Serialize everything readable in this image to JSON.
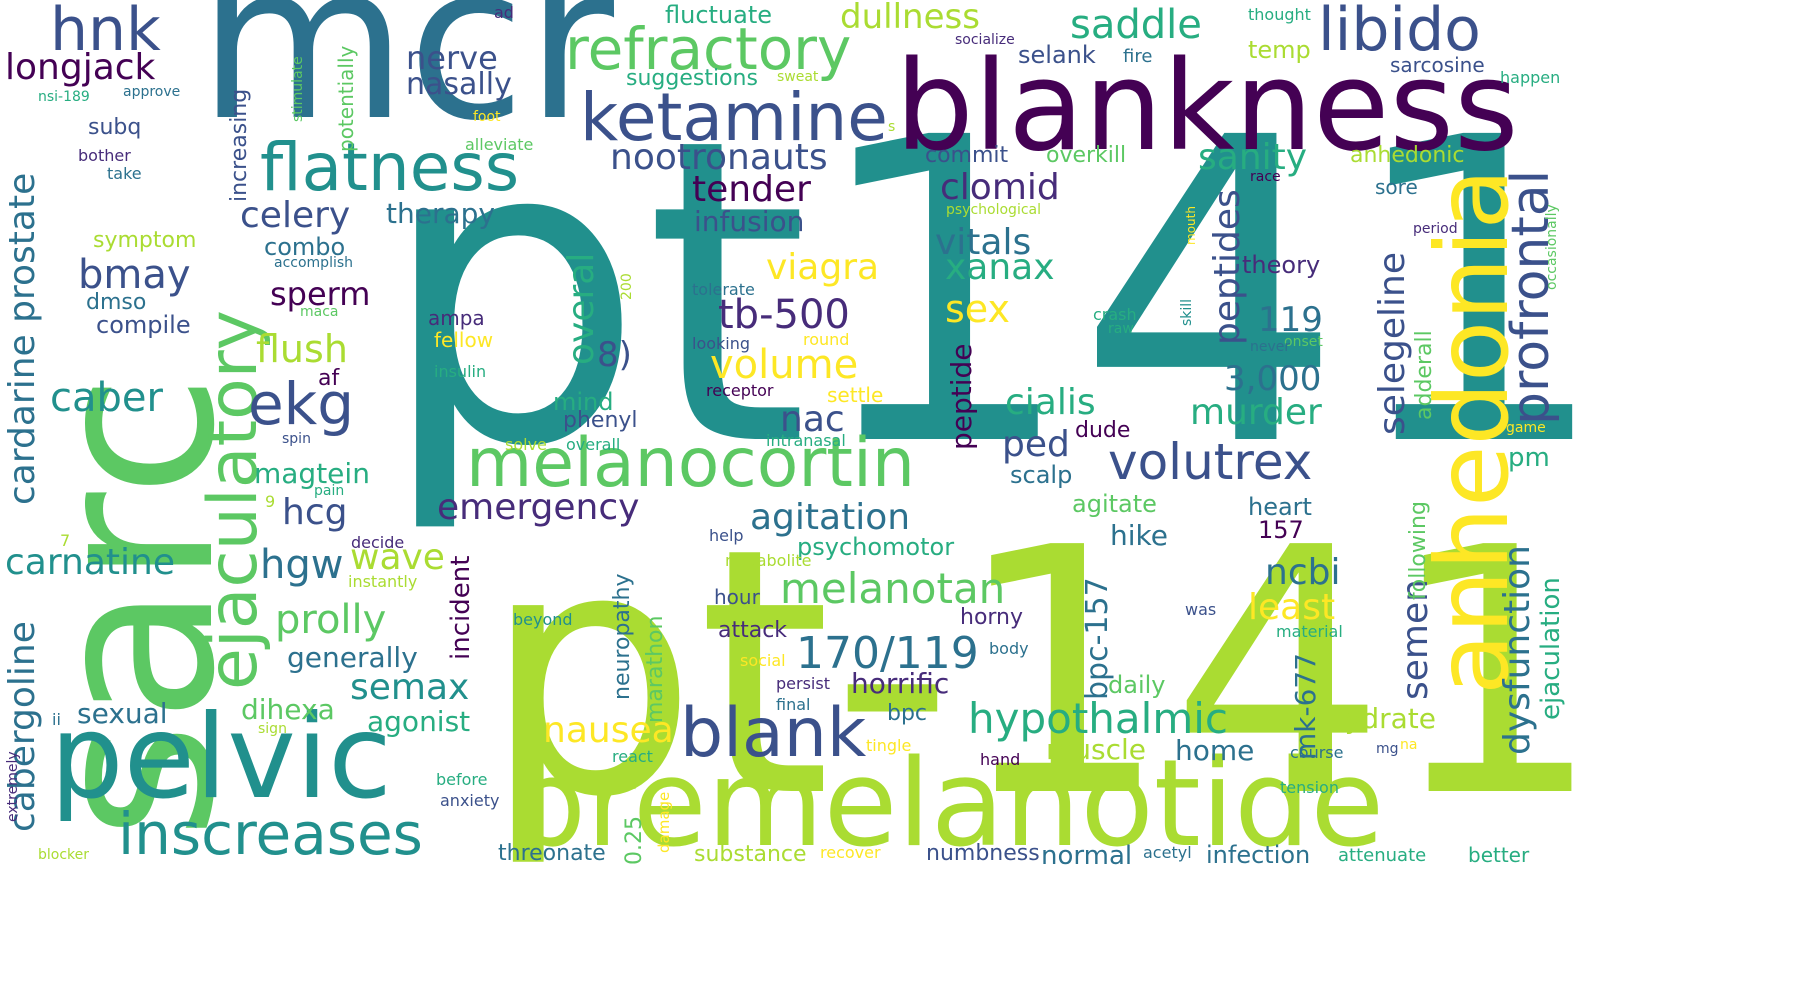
{
  "colors": [
    "#440154",
    "#472c7a",
    "#3b518b",
    "#2c718e",
    "#21908d",
    "#27ad81",
    "#5cc863",
    "#aadc32",
    "#fde725"
  ],
  "words": [
    {
      "text": "pt141",
      "color": "#21908d"
    },
    {
      "text": "pt-141",
      "color": "#aadc32"
    },
    {
      "text": "mcr",
      "color": "#2c718e"
    },
    {
      "text": "sarc",
      "color": "#5cc863"
    },
    {
      "text": "blankness",
      "color": "#440154"
    },
    {
      "text": "bremelanotide",
      "color": "#aadc32"
    },
    {
      "text": "pelvic",
      "color": "#21908d"
    },
    {
      "text": "anhedonia",
      "color": "#fde725"
    },
    {
      "text": "melanocortin",
      "color": "#5cc863"
    },
    {
      "text": "ejaculatory",
      "color": "#5cc863"
    },
    {
      "text": "blank",
      "color": "#3b518b"
    },
    {
      "text": "flatness",
      "color": "#21908d"
    },
    {
      "text": "ketamine",
      "color": "#3b518b"
    },
    {
      "text": "refractory",
      "color": "#5cc863"
    },
    {
      "text": "volutrex",
      "color": "#3b518b"
    },
    {
      "text": "profrontal",
      "color": "#3b518b"
    },
    {
      "text": "inscreases",
      "color": "#21908d"
    },
    {
      "text": "libido",
      "color": "#3b518b"
    },
    {
      "text": "hnk",
      "color": "#3b518b"
    },
    {
      "text": "ekg",
      "color": "#3b518b"
    },
    {
      "text": "hypothalmic",
      "color": "#27ad81"
    },
    {
      "text": "melanotan",
      "color": "#5cc863"
    },
    {
      "text": "170/119",
      "color": "#2c718e"
    },
    {
      "text": "volume",
      "color": "#fde725"
    },
    {
      "text": "saddle",
      "color": "#27ad81"
    },
    {
      "text": "dullness",
      "color": "#aadc32"
    },
    {
      "text": "nootronauts",
      "color": "#3b518b"
    },
    {
      "text": "tb-500",
      "color": "#472c7a"
    },
    {
      "text": "longjack",
      "color": "#440154"
    },
    {
      "text": "cardarine prostate",
      "color": "#2c718e"
    },
    {
      "text": "cabergoline",
      "color": "#2c718e"
    },
    {
      "text": "carnatine",
      "color": "#21908d"
    },
    {
      "text": "caber",
      "color": "#21908d"
    },
    {
      "text": "bmay",
      "color": "#3b518b"
    },
    {
      "text": "celery",
      "color": "#3b518b"
    },
    {
      "text": "tender",
      "color": "#440154"
    },
    {
      "text": "clomid",
      "color": "#472c7a"
    },
    {
      "text": "vitals",
      "color": "#2c718e"
    },
    {
      "text": "xanax",
      "color": "#27ad81"
    },
    {
      "text": "viagra",
      "color": "#fde725"
    },
    {
      "text": "sex",
      "color": "#fde725"
    },
    {
      "text": "cialis",
      "color": "#27ad81"
    },
    {
      "text": "murder",
      "color": "#27ad81"
    },
    {
      "text": "agitation",
      "color": "#2c718e"
    },
    {
      "text": "emergency",
      "color": "#472c7a"
    },
    {
      "text": "prolly",
      "color": "#5cc863"
    },
    {
      "text": "semax",
      "color": "#21908d"
    },
    {
      "text": "wave",
      "color": "#aadc32"
    },
    {
      "text": "hgw",
      "color": "#2c718e"
    },
    {
      "text": "hcg",
      "color": "#3b518b"
    },
    {
      "text": "nausea",
      "color": "#fde725"
    },
    {
      "text": "sanity",
      "color": "#27ad81"
    },
    {
      "text": "peptides",
      "color": "#3b518b"
    },
    {
      "text": "selegeline",
      "color": "#3b518b"
    },
    {
      "text": "dysfunction",
      "color": "#2c718e"
    },
    {
      "text": "ejaculation",
      "color": "#27ad81"
    },
    {
      "text": "semen",
      "color": "#3b518b"
    },
    {
      "text": "ncbi",
      "color": "#2c718e"
    },
    {
      "text": "least",
      "color": "#fde725"
    },
    {
      "text": "bpc-157",
      "color": "#2c718e"
    },
    {
      "text": "mk-677",
      "color": "#2c718e"
    },
    {
      "text": "overal",
      "color": "#27ad81"
    },
    {
      "text": "nerve",
      "color": "#3b518b"
    },
    {
      "text": "nasally",
      "color": "#3b518b"
    },
    {
      "text": "sperm",
      "color": "#440154"
    },
    {
      "text": "flush",
      "color": "#aadc32"
    },
    {
      "text": "3,000",
      "color": "#2c718e"
    },
    {
      "text": "119",
      "color": "#2c718e"
    },
    {
      "text": "theory",
      "color": "#472c7a"
    },
    {
      "text": "infusion",
      "color": "#3b518b"
    },
    {
      "text": "therapy",
      "color": "#2c718e"
    },
    {
      "text": "nac",
      "color": "#3b518b"
    },
    {
      "text": "ped",
      "color": "#3b518b"
    },
    {
      "text": "8)",
      "color": "#3b518b"
    },
    {
      "text": "peptide",
      "color": "#440154"
    },
    {
      "text": "psychomotor",
      "color": "#27ad81"
    },
    {
      "text": "horrific",
      "color": "#472c7a"
    },
    {
      "text": "incident",
      "color": "#440154"
    },
    {
      "text": "neuropathy",
      "color": "#2c718e"
    },
    {
      "text": "marathon",
      "color": "#5cc863"
    },
    {
      "text": "magtein",
      "color": "#27ad81"
    },
    {
      "text": "generally",
      "color": "#2c718e"
    },
    {
      "text": "agonist",
      "color": "#27ad81"
    },
    {
      "text": "dihexa",
      "color": "#5cc863"
    },
    {
      "text": "sexual",
      "color": "#2c718e"
    },
    {
      "text": "hydrate",
      "color": "#aadc32"
    },
    {
      "text": "muscle",
      "color": "#aadc32"
    },
    {
      "text": "home",
      "color": "#2c718e"
    },
    {
      "text": "bpc",
      "color": "#2c718e"
    },
    {
      "text": "daily",
      "color": "#5cc863"
    },
    {
      "text": "normal",
      "color": "#2c718e"
    },
    {
      "text": "infection",
      "color": "#2c718e"
    },
    {
      "text": "substance",
      "color": "#aadc32"
    },
    {
      "text": "threonate",
      "color": "#2c718e"
    },
    {
      "text": "numbness",
      "color": "#3b518b"
    },
    {
      "text": "better",
      "color": "#27ad81"
    },
    {
      "text": "attenuate",
      "color": "#27ad81"
    },
    {
      "text": "0.25",
      "color": "#5cc863"
    },
    {
      "text": "damage",
      "color": "#fde725"
    },
    {
      "text": "hike",
      "color": "#2c718e"
    },
    {
      "text": "heart",
      "color": "#2c718e"
    },
    {
      "text": "157",
      "color": "#440154"
    },
    {
      "text": "agitate",
      "color": "#5cc863"
    },
    {
      "text": "following",
      "color": "#5cc863"
    },
    {
      "text": "adderall",
      "color": "#5cc863"
    },
    {
      "text": "pm",
      "color": "#27ad81"
    },
    {
      "text": "fluctuate",
      "color": "#27ad81"
    },
    {
      "text": "suggestions",
      "color": "#27ad81"
    },
    {
      "text": "selank",
      "color": "#3b518b"
    },
    {
      "text": "temp",
      "color": "#aadc32"
    },
    {
      "text": "sarcosine",
      "color": "#3b518b"
    },
    {
      "text": "overkill",
      "color": "#5cc863"
    },
    {
      "text": "commit",
      "color": "#3b518b"
    },
    {
      "text": "anhedonic",
      "color": "#aadc32"
    },
    {
      "text": "sore",
      "color": "#2c718e"
    },
    {
      "text": "combo",
      "color": "#2c718e"
    },
    {
      "text": "dmso",
      "color": "#2c718e"
    },
    {
      "text": "compile",
      "color": "#3b518b"
    },
    {
      "text": "symptom",
      "color": "#aadc32"
    },
    {
      "text": "subq",
      "color": "#3b518b"
    },
    {
      "text": "increasing",
      "color": "#3b518b"
    },
    {
      "text": "potentially",
      "color": "#5cc863"
    },
    {
      "text": "mind",
      "color": "#27ad81"
    },
    {
      "text": "phenyl",
      "color": "#3b518b"
    },
    {
      "text": "ampa",
      "color": "#472c7a"
    },
    {
      "text": "af",
      "color": "#440154"
    },
    {
      "text": "dude",
      "color": "#440154"
    },
    {
      "text": "scalp",
      "color": "#2c718e"
    },
    {
      "text": "attack",
      "color": "#472c7a"
    },
    {
      "text": "horny",
      "color": "#472c7a"
    },
    {
      "text": "hour",
      "color": "#3b518b"
    },
    {
      "text": "fellow",
      "color": "#fde725"
    },
    {
      "text": "settle",
      "color": "#fde725"
    },
    {
      "text": "crash",
      "color": "#27ad81"
    },
    {
      "text": "raw",
      "color": "#27ad81"
    },
    {
      "text": "skill",
      "color": "#21908d"
    },
    {
      "text": "onset",
      "color": "#5cc863"
    },
    {
      "text": "never",
      "color": "#2c718e"
    },
    {
      "text": "period",
      "color": "#472c7a"
    },
    {
      "text": "occasionally",
      "color": "#5cc863"
    },
    {
      "text": "mouth",
      "color": "#fde725"
    },
    {
      "text": "psychological",
      "color": "#aadc32"
    },
    {
      "text": "race",
      "color": "#440154"
    },
    {
      "text": "thought",
      "color": "#27ad81"
    },
    {
      "text": "socialize",
      "color": "#472c7a"
    },
    {
      "text": "fire",
      "color": "#2c718e"
    },
    {
      "text": "ad",
      "color": "#472c7a"
    },
    {
      "text": "sweat",
      "color": "#aadc32"
    },
    {
      "text": "happen",
      "color": "#27ad81"
    },
    {
      "text": "nsi-189",
      "color": "#27ad81"
    },
    {
      "text": "approve",
      "color": "#2c718e"
    },
    {
      "text": "stimulate",
      "color": "#5cc863"
    },
    {
      "text": "foot",
      "color": "#fde725"
    },
    {
      "text": "alleviate",
      "color": "#5cc863"
    },
    {
      "text": "s",
      "color": "#aadc32"
    },
    {
      "text": "bother",
      "color": "#472c7a"
    },
    {
      "text": "take",
      "color": "#2c718e"
    },
    {
      "text": "accomplish",
      "color": "#2c718e"
    },
    {
      "text": "maca",
      "color": "#5cc863"
    },
    {
      "text": "spin",
      "color": "#3b518b"
    },
    {
      "text": "pain",
      "color": "#27ad81"
    },
    {
      "text": "9",
      "color": "#aadc32"
    },
    {
      "text": "7",
      "color": "#aadc32"
    },
    {
      "text": "decide",
      "color": "#472c7a"
    },
    {
      "text": "instantly",
      "color": "#aadc32"
    },
    {
      "text": "insulin",
      "color": "#27ad81"
    },
    {
      "text": "looking",
      "color": "#3b518b"
    },
    {
      "text": "round",
      "color": "#fde725"
    },
    {
      "text": "receptor",
      "color": "#440154"
    },
    {
      "text": "tolerate",
      "color": "#2c718e"
    },
    {
      "text": "solve",
      "color": "#aadc32"
    },
    {
      "text": "overall",
      "color": "#27ad81"
    },
    {
      "text": "intranasal",
      "color": "#27ad81"
    },
    {
      "text": "200",
      "color": "#aadc32"
    },
    {
      "text": "help",
      "color": "#3b518b"
    },
    {
      "text": "metabolite",
      "color": "#aadc32"
    },
    {
      "text": "beyond",
      "color": "#21908d"
    },
    {
      "text": "social",
      "color": "#fde725"
    },
    {
      "text": "persist",
      "color": "#472c7a"
    },
    {
      "text": "final",
      "color": "#2c718e"
    },
    {
      "text": "body",
      "color": "#2c718e"
    },
    {
      "text": "was",
      "color": "#3b518b"
    },
    {
      "text": "material",
      "color": "#27ad81"
    },
    {
      "text": "game",
      "color": "#fde725"
    },
    {
      "text": "tingle",
      "color": "#fde725"
    },
    {
      "text": "react",
      "color": "#27ad81"
    },
    {
      "text": "hand",
      "color": "#440154"
    },
    {
      "text": "course",
      "color": "#2c718e"
    },
    {
      "text": "mg",
      "color": "#3b518b"
    },
    {
      "text": "na",
      "color": "#fde725"
    },
    {
      "text": "tension",
      "color": "#27ad81"
    },
    {
      "text": "before",
      "color": "#27ad81"
    },
    {
      "text": "anxiety",
      "color": "#3b518b"
    },
    {
      "text": "recover",
      "color": "#fde725"
    },
    {
      "text": "acetyl",
      "color": "#2c718e"
    },
    {
      "text": "blocker",
      "color": "#aadc32"
    },
    {
      "text": "extremely",
      "color": "#472c7a"
    },
    {
      "text": "ii",
      "color": "#2c718e"
    },
    {
      "text": "sign",
      "color": "#aadc32"
    }
  ]
}
